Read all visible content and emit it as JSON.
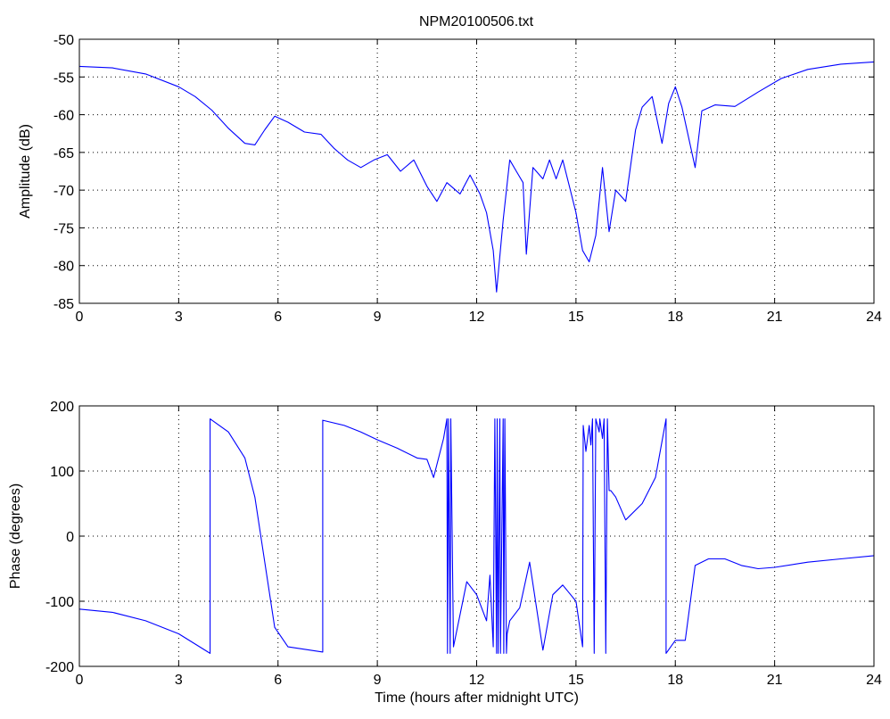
{
  "title": "NPM20100506.txt",
  "chart_data": [
    {
      "type": "line",
      "title": "NPM20100506.txt",
      "xlabel": "",
      "ylabel": "Amplitude (dB)",
      "xlim": [
        0,
        24
      ],
      "ylim": [
        -85,
        -50
      ],
      "xticks": [
        0,
        3,
        6,
        9,
        12,
        15,
        18,
        21,
        24
      ],
      "yticks": [
        -85,
        -80,
        -75,
        -70,
        -65,
        -60,
        -55,
        -50
      ],
      "grid": true,
      "color": "#0000ff",
      "x": [
        0,
        1,
        2,
        3,
        3.5,
        4,
        4.5,
        5,
        5.3,
        5.6,
        5.9,
        6.3,
        6.8,
        7.3,
        7.7,
        8.1,
        8.5,
        8.9,
        9.3,
        9.7,
        10.1,
        10.5,
        10.8,
        11.1,
        11.5,
        11.8,
        12.1,
        12.3,
        12.5,
        12.6,
        12.8,
        13.0,
        13.2,
        13.4,
        13.5,
        13.7,
        14.0,
        14.2,
        14.4,
        14.6,
        14.8,
        15.0,
        15.2,
        15.4,
        15.6,
        15.8,
        16.0,
        16.2,
        16.5,
        16.8,
        17.0,
        17.3,
        17.6,
        17.8,
        18.0,
        18.2,
        18.4,
        18.6,
        18.8,
        19.2,
        19.8,
        20.5,
        21.2,
        22.0,
        23.0,
        24.0
      ],
      "y": [
        -53.6,
        -53.8,
        -54.6,
        -56.3,
        -57.6,
        -59.4,
        -61.8,
        -63.8,
        -64.0,
        -62.0,
        -60.2,
        -61.0,
        -62.3,
        -62.6,
        -64.5,
        -66.0,
        -67.0,
        -66.0,
        -65.3,
        -67.5,
        -66.0,
        -69.5,
        -71.5,
        -69.0,
        -70.5,
        -68.0,
        -70.5,
        -73.0,
        -78.0,
        -83.5,
        -74.0,
        -66.0,
        -67.5,
        -69.0,
        -78.5,
        -67.0,
        -68.5,
        -66.0,
        -68.5,
        -66.0,
        -69.5,
        -73.0,
        -78.0,
        -79.5,
        -76.0,
        -67.0,
        -75.5,
        -70.0,
        -71.5,
        -62.0,
        -59.0,
        -57.6,
        -63.8,
        -58.5,
        -56.3,
        -59.0,
        -63.0,
        -67.0,
        -59.5,
        -58.7,
        -58.9,
        -57.0,
        -55.2,
        -54.0,
        -53.3,
        -53.0
      ]
    },
    {
      "type": "line",
      "title": "",
      "xlabel": "Time (hours after midnight UTC)",
      "ylabel": "Phase (degrees)",
      "xlim": [
        0,
        24
      ],
      "ylim": [
        -200,
        200
      ],
      "xticks": [
        0,
        3,
        6,
        9,
        12,
        15,
        18,
        21,
        24
      ],
      "yticks": [
        -200,
        -100,
        0,
        100,
        200
      ],
      "grid": true,
      "color": "#0000ff",
      "x": [
        0,
        1,
        2,
        3,
        3.95,
        3.95,
        4.5,
        5.0,
        5.3,
        5.6,
        5.9,
        6.3,
        7.35,
        7.35,
        8.0,
        8.5,
        9.0,
        9.6,
        10.2,
        10.5,
        10.7,
        11.0,
        11.1,
        11.12,
        11.15,
        11.2,
        11.22,
        11.3,
        11.7,
        12.0,
        12.3,
        12.4,
        12.5,
        12.55,
        12.6,
        12.62,
        12.65,
        12.7,
        12.72,
        12.8,
        12.82,
        12.85,
        12.9,
        12.92,
        13.0,
        13.3,
        13.6,
        14.0,
        14.3,
        14.6,
        15.0,
        15.2,
        15.22,
        15.3,
        15.4,
        15.45,
        15.5,
        15.55,
        15.6,
        15.7,
        15.72,
        15.8,
        15.85,
        15.9,
        15.95,
        16.0,
        16.05,
        16.2,
        16.5,
        17.0,
        17.4,
        17.72,
        17.72,
        18.0,
        18.3,
        18.6,
        19.0,
        19.5,
        20.0,
        20.5,
        21.0,
        22.0,
        23.0,
        24.0
      ],
      "y": [
        -112,
        -117,
        -130,
        -150,
        -180,
        180,
        160,
        120,
        60,
        -40,
        -140,
        -170,
        -178,
        178,
        170,
        160,
        148,
        135,
        120,
        118,
        90,
        150,
        180,
        -180,
        180,
        -180,
        180,
        -170,
        -70,
        -90,
        -130,
        -60,
        -170,
        180,
        -180,
        180,
        -180,
        180,
        -180,
        180,
        -180,
        180,
        -180,
        -150,
        -130,
        -110,
        -40,
        -175,
        -90,
        -75,
        -100,
        -170,
        170,
        130,
        170,
        140,
        180,
        -180,
        180,
        160,
        180,
        150,
        180,
        -180,
        180,
        70,
        70,
        60,
        25,
        50,
        90,
        180,
        -180,
        -160,
        -160,
        -45,
        -35,
        -35,
        -45,
        -50,
        -48,
        -40,
        -35,
        -30
      ]
    }
  ]
}
